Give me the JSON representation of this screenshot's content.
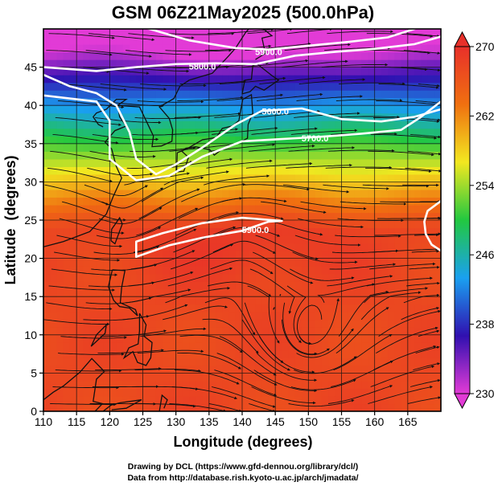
{
  "title": "GSM 06Z21May2025 (500.0hPa)",
  "xlabel": "Longitude (degrees)",
  "ylabel": "Latitude  (degrees)",
  "credits": [
    "Drawing by DCL (https://www.gfd-dennou.org/library/dcl/)",
    "Data from http://database.rish.kyoto-u.ac.jp/arch/jmadata/"
  ],
  "map_data": {
    "lon_range": [
      110,
      170
    ],
    "lat_range": [
      0,
      50
    ],
    "lon_ticks": [
      110,
      115,
      120,
      125,
      130,
      135,
      140,
      145,
      150,
      155,
      160,
      165
    ],
    "lat_ticks": [
      0,
      5,
      10,
      15,
      20,
      25,
      30,
      35,
      40,
      45
    ],
    "grid": true,
    "colorbar": {
      "range": [
        230,
        270
      ],
      "tick_values": [
        230,
        238,
        246,
        254,
        262,
        270
      ],
      "stops": [
        "#e23bd6",
        "#3010b0",
        "#1aa0f0",
        "#22c840",
        "#f2e820",
        "#f07010",
        "#e8302a"
      ]
    },
    "contours": [
      {
        "label": "5600.0",
        "points": [
          [
            110,
            44
          ],
          [
            114,
            42.5
          ],
          [
            118,
            41.6
          ],
          [
            121,
            40
          ],
          [
            123,
            36.5
          ],
          [
            124,
            33
          ],
          [
            127,
            31
          ],
          [
            130,
            32.3
          ],
          [
            134,
            34.5
          ],
          [
            139,
            37.5
          ],
          [
            143,
            39.3
          ],
          [
            149,
            39.6
          ],
          [
            155,
            38.2
          ],
          [
            161,
            37.9
          ],
          [
            166,
            38.5
          ],
          [
            170,
            39.5
          ]
        ],
        "label_at": [
          145,
          38.8
        ]
      },
      {
        "label": "5700.0",
        "points": [
          [
            110,
            41.3
          ],
          [
            118,
            40.5
          ],
          [
            120,
            38
          ],
          [
            120,
            33
          ],
          [
            124,
            30.2
          ],
          [
            129,
            30.8
          ],
          [
            134,
            33.3
          ],
          [
            140,
            35.3
          ],
          [
            146,
            35.6
          ],
          [
            152,
            35.9
          ],
          [
            158,
            36.3
          ],
          [
            164,
            36.8
          ],
          [
            167,
            38.5
          ],
          [
            170,
            40.5
          ]
        ],
        "label_at": [
          151,
          35.3
        ]
      },
      {
        "label": "5800.0",
        "points": [
          [
            110,
            45
          ],
          [
            118,
            44.5
          ],
          [
            124,
            45
          ],
          [
            130,
            45.4
          ],
          [
            136,
            45.5
          ],
          [
            142,
            45.4
          ],
          [
            148,
            46.5
          ],
          [
            154,
            47
          ],
          [
            160,
            47.4
          ],
          [
            166,
            48
          ],
          [
            170,
            49
          ]
        ],
        "label_at": [
          134,
          44.7
        ]
      },
      {
        "label": "5900.0",
        "points": [
          [
            124,
            20.2
          ],
          [
            129,
            21.7
          ],
          [
            134,
            22.7
          ],
          [
            140,
            23.6
          ],
          [
            144,
            24.8
          ],
          [
            146,
            24.9
          ],
          [
            140,
            25.3
          ],
          [
            134,
            24.6
          ],
          [
            128,
            23.3
          ],
          [
            124,
            22.2
          ],
          [
            124,
            20.2
          ]
        ],
        "label_at": [
          142,
          23.3
        ]
      },
      {
        "label": "5900.0",
        "points": [
          [
            122,
            51
          ],
          [
            126,
            50
          ],
          [
            132,
            48.5
          ],
          [
            139,
            47.5
          ],
          [
            144,
            47.3
          ],
          [
            150,
            47.8
          ],
          [
            156,
            48.3
          ],
          [
            162,
            48.9
          ],
          [
            166,
            50
          ],
          [
            168,
            51
          ]
        ],
        "label_at": [
          144,
          46.6
        ]
      },
      {
        "label": "",
        "points": [
          [
            170,
            27.5
          ],
          [
            168,
            26.2
          ],
          [
            167.5,
            24.8
          ],
          [
            167.7,
            23.2
          ],
          [
            168.6,
            21.8
          ],
          [
            170,
            21
          ]
        ],
        "label_at": null
      }
    ]
  }
}
